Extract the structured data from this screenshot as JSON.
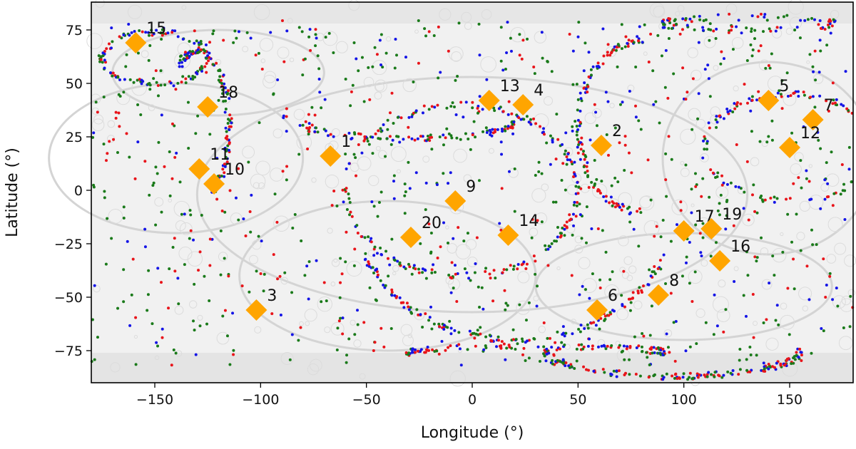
{
  "chart_data": {
    "type": "scatter",
    "xlabel": "Longitude (°)",
    "ylabel": "Latitude (°)",
    "xlim": [
      -180,
      180
    ],
    "ylim": [
      -90,
      88
    ],
    "x_ticks": [
      -150,
      -100,
      -50,
      0,
      50,
      100,
      150
    ],
    "y_ticks": [
      75,
      50,
      25,
      0,
      -25,
      -50,
      -75
    ],
    "background": "grayscale global shaded-relief basemap",
    "dot_colors": {
      "red": "#e8141a",
      "blue": "#1414e6",
      "green": "#1a7a1a"
    },
    "marker_color": "#ffa500",
    "sites": [
      {
        "label": "1",
        "lon": -67,
        "lat": 16
      },
      {
        "label": "2",
        "lon": 61,
        "lat": 21
      },
      {
        "label": "3",
        "lon": -102,
        "lat": -56
      },
      {
        "label": "4",
        "lon": 24,
        "lat": 40
      },
      {
        "label": "5",
        "lon": 140,
        "lat": 42
      },
      {
        "label": "6",
        "lon": 59,
        "lat": -56
      },
      {
        "label": "7",
        "lon": 161,
        "lat": 33
      },
      {
        "label": "8",
        "lon": 88,
        "lat": -49
      },
      {
        "label": "9",
        "lon": -8,
        "lat": -5
      },
      {
        "label": "10",
        "lon": -122,
        "lat": 3
      },
      {
        "label": "11",
        "lon": -129,
        "lat": 10
      },
      {
        "label": "12",
        "lon": 150,
        "lat": 20
      },
      {
        "label": "13",
        "lon": 8,
        "lat": 42
      },
      {
        "label": "14",
        "lon": 17,
        "lat": -21
      },
      {
        "label": "15",
        "lon": -159,
        "lat": 69
      },
      {
        "label": "16",
        "lon": 117,
        "lat": -33
      },
      {
        "label": "17",
        "lon": 100,
        "lat": -19
      },
      {
        "label": "18",
        "lon": -125,
        "lat": 39
      },
      {
        "label": "19",
        "lon": 113,
        "lat": -18
      },
      {
        "label": "20",
        "lon": -29,
        "lat": -22
      }
    ]
  }
}
